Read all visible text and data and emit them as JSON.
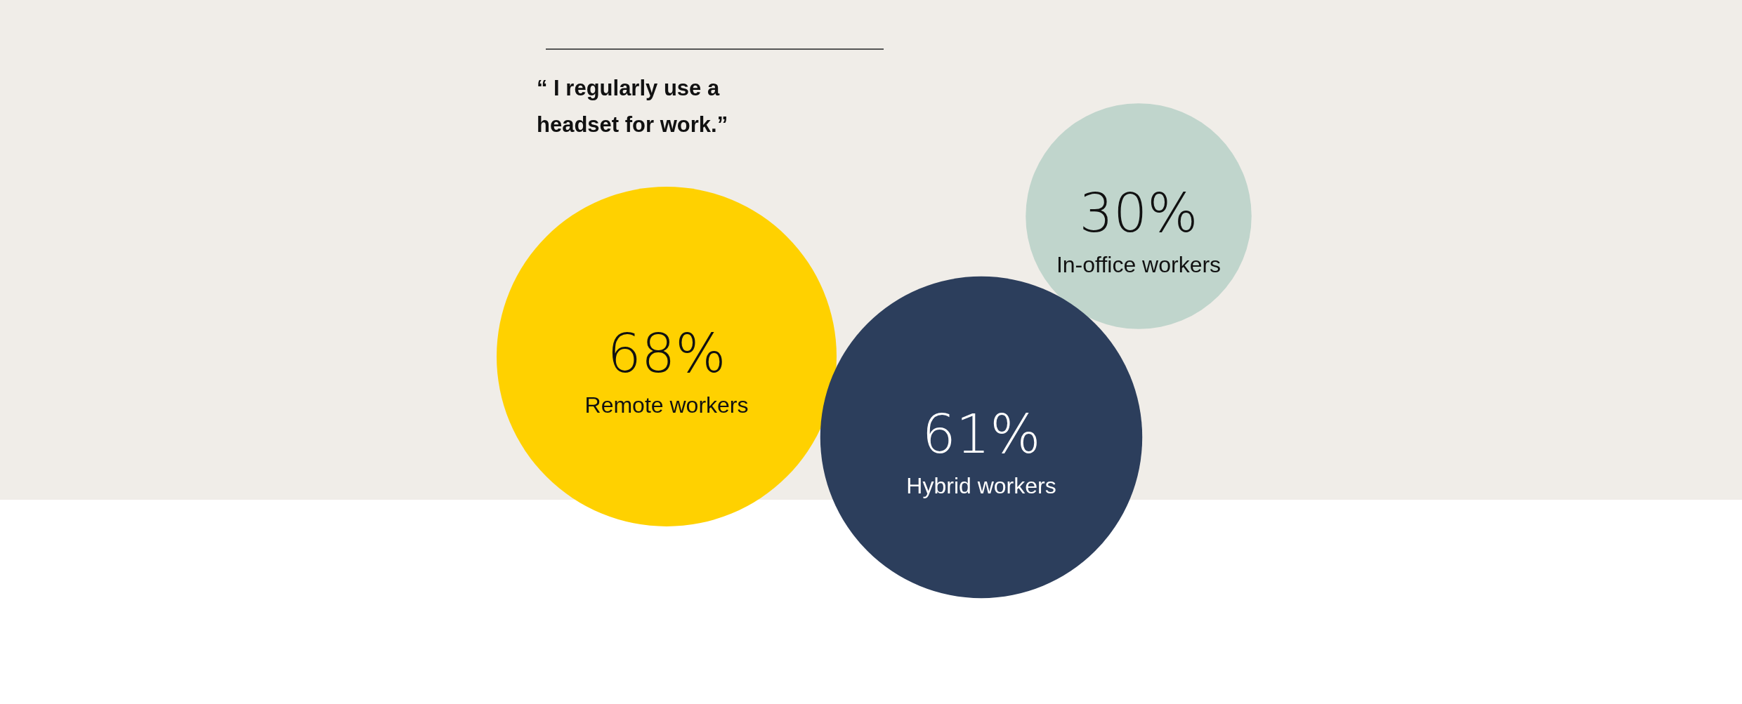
{
  "chart_data": {
    "type": "other",
    "title": "“ I regularly use a headset for work.”",
    "categories": [
      "Remote workers",
      "Hybrid workers",
      "In-office workers"
    ],
    "values": [
      68,
      61,
      30
    ],
    "value_labels": [
      "68%",
      "61%",
      "30%"
    ],
    "colors": [
      "#ffd100",
      "#2c3e5c",
      "#c0d5cc"
    ]
  }
}
